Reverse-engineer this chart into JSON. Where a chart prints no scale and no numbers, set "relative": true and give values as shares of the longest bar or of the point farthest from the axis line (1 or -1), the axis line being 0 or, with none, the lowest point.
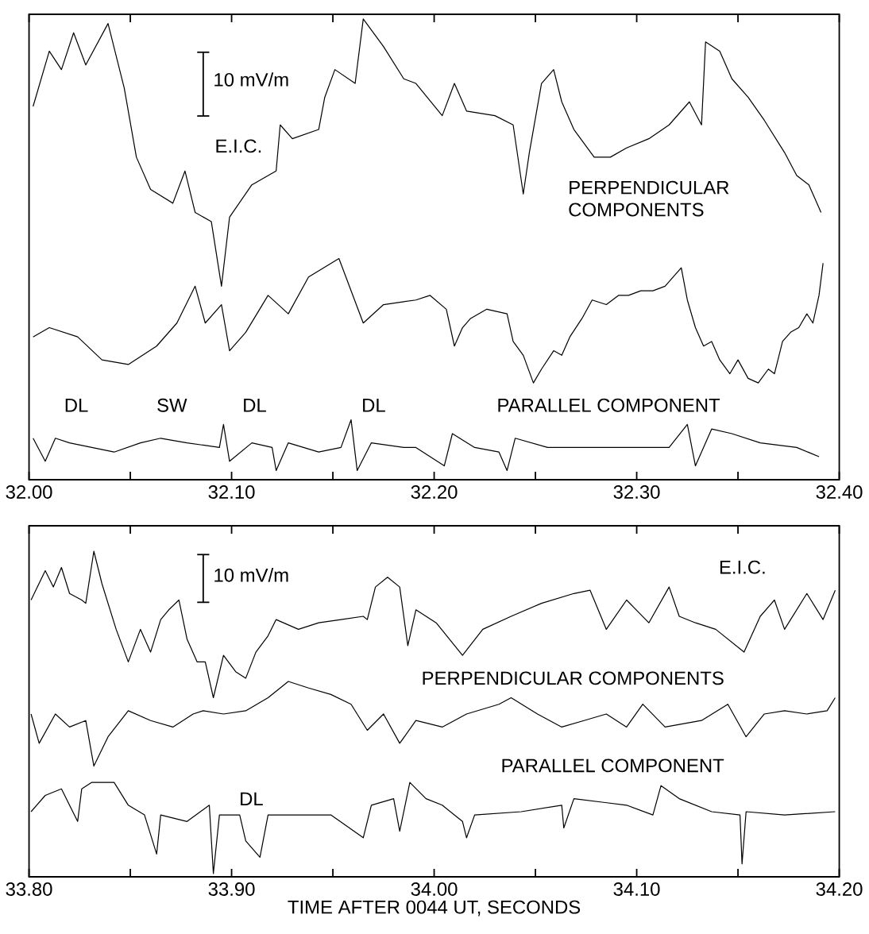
{
  "chart_data": [
    {
      "type": "line",
      "relative": true,
      "xlim": [
        32.0,
        32.4
      ],
      "xticks": [
        {
          "value": 32.0,
          "label": "32.00"
        },
        {
          "value": 32.05,
          "label": null
        },
        {
          "value": 32.1,
          "label": "32.10"
        },
        {
          "value": 32.15,
          "label": null
        },
        {
          "value": 32.2,
          "label": "32.20"
        },
        {
          "value": 32.25,
          "label": null
        },
        {
          "value": 32.3,
          "label": "32.30"
        },
        {
          "value": 32.35,
          "label": null
        },
        {
          "value": 32.4,
          "label": "32.40"
        }
      ],
      "series": [
        {
          "color": "#000000",
          "x": [
            32.002,
            32.01,
            32.016,
            32.022,
            32.028,
            32.039,
            32.047,
            32.053,
            32.06,
            32.071,
            32.077,
            32.082,
            32.09,
            32.095,
            32.099,
            32.11,
            32.122,
            32.124,
            32.13,
            32.143,
            32.146,
            32.151,
            32.161,
            32.165,
            32.175,
            32.185,
            32.191,
            32.204,
            32.21,
            32.216,
            32.23,
            32.239,
            32.244,
            32.247,
            32.253,
            32.259,
            32.263,
            32.269,
            32.279,
            32.287,
            32.295,
            32.306,
            32.316,
            32.326,
            32.332,
            32.334,
            32.341,
            32.347,
            32.355,
            32.363,
            32.373,
            32.379,
            32.385,
            32.391
          ],
          "values": [
            0.81,
            0.93,
            0.89,
            0.97,
            0.9,
            0.99,
            0.85,
            0.7,
            0.63,
            0.6,
            0.67,
            0.58,
            0.56,
            0.42,
            0.57,
            0.64,
            0.67,
            0.77,
            0.74,
            0.76,
            0.83,
            0.89,
            0.86,
            1.0,
            0.94,
            0.87,
            0.86,
            0.79,
            0.86,
            0.8,
            0.79,
            0.77,
            0.62,
            0.71,
            0.86,
            0.89,
            0.82,
            0.76,
            0.7,
            0.7,
            0.72,
            0.74,
            0.77,
            0.82,
            0.77,
            0.95,
            0.93,
            0.87,
            0.83,
            0.78,
            0.71,
            0.66,
            0.64,
            0.58
          ]
        },
        {
          "color": "#000000",
          "x": [
            32.002,
            32.01,
            32.024,
            32.036,
            32.049,
            32.063,
            32.073,
            32.082,
            32.087,
            32.095,
            32.099,
            32.107,
            32.118,
            32.128,
            32.138,
            32.153,
            32.165,
            32.175,
            32.191,
            32.198,
            32.206,
            32.21,
            32.214,
            32.218,
            32.226,
            32.236,
            32.239,
            32.244,
            32.249,
            32.253,
            32.259,
            32.263,
            32.267,
            32.273,
            32.278,
            32.285,
            32.291,
            32.296,
            32.302,
            32.308,
            32.314,
            32.322,
            32.325,
            32.329,
            32.333,
            32.337,
            32.341,
            32.346,
            32.35,
            32.355,
            32.36,
            32.365,
            32.368,
            32.372,
            32.376,
            32.38,
            32.384,
            32.387,
            32.39,
            32.392
          ],
          "values": [
            0.31,
            0.33,
            0.31,
            0.26,
            0.25,
            0.29,
            0.34,
            0.42,
            0.34,
            0.38,
            0.28,
            0.32,
            0.4,
            0.36,
            0.44,
            0.48,
            0.34,
            0.38,
            0.39,
            0.4,
            0.37,
            0.29,
            0.33,
            0.35,
            0.37,
            0.36,
            0.3,
            0.27,
            0.21,
            0.24,
            0.28,
            0.27,
            0.31,
            0.35,
            0.39,
            0.38,
            0.4,
            0.4,
            0.41,
            0.41,
            0.42,
            0.46,
            0.39,
            0.33,
            0.29,
            0.3,
            0.26,
            0.23,
            0.26,
            0.22,
            0.21,
            0.24,
            0.23,
            0.3,
            0.32,
            0.33,
            0.36,
            0.34,
            0.4,
            0.47
          ]
        },
        {
          "color": "#000000",
          "x": [
            32.002,
            32.008,
            32.013,
            32.02,
            32.031,
            32.042,
            32.055,
            32.065,
            32.078,
            32.094,
            32.096,
            32.099,
            32.11,
            32.12,
            32.122,
            32.128,
            32.143,
            32.154,
            32.159,
            32.162,
            32.169,
            32.185,
            32.191,
            32.205,
            32.209,
            32.22,
            32.232,
            32.236,
            32.24,
            32.256,
            32.282,
            32.3,
            32.316,
            32.325,
            32.329,
            32.337,
            32.347,
            32.361,
            32.379,
            32.39
          ],
          "values": [
            0.09,
            0.04,
            0.09,
            0.08,
            0.07,
            0.06,
            0.08,
            0.09,
            0.08,
            0.07,
            0.12,
            0.04,
            0.08,
            0.07,
            0.02,
            0.08,
            0.06,
            0.07,
            0.13,
            0.02,
            0.08,
            0.07,
            0.07,
            0.03,
            0.1,
            0.07,
            0.06,
            0.02,
            0.09,
            0.07,
            0.07,
            0.07,
            0.07,
            0.12,
            0.03,
            0.11,
            0.1,
            0.08,
            0.07,
            0.05
          ]
        }
      ],
      "annotations": [
        "10 mV/m",
        "E.I.C.",
        "PERPENDICULAR COMPONENTS",
        "PARALLEL COMPONENT",
        "DL",
        "SW",
        "DL",
        "DL"
      ]
    },
    {
      "type": "line",
      "relative": true,
      "xlim": [
        33.8,
        34.2
      ],
      "xlabel": "TIME AFTER 0044 UT, SECONDS",
      "xticks": [
        {
          "value": 33.8,
          "label": "33.80"
        },
        {
          "value": 33.85,
          "label": null
        },
        {
          "value": 33.9,
          "label": "33.90"
        },
        {
          "value": 33.95,
          "label": null
        },
        {
          "value": 34.0,
          "label": "34.00"
        },
        {
          "value": 34.05,
          "label": null
        },
        {
          "value": 34.1,
          "label": "34.10"
        },
        {
          "value": 34.15,
          "label": null
        },
        {
          "value": 34.2,
          "label": "34.20"
        }
      ],
      "series": [
        {
          "color": "#000000",
          "x": [
            33.801,
            33.808,
            33.812,
            33.816,
            33.82,
            33.826,
            33.828,
            33.832,
            33.836,
            33.843,
            33.849,
            33.855,
            33.86,
            33.865,
            33.869,
            33.874,
            33.878,
            33.883,
            33.887,
            33.891,
            33.896,
            33.902,
            33.907,
            33.912,
            33.918,
            33.922,
            33.933,
            33.943,
            33.954,
            33.965,
            33.967,
            33.971,
            33.977,
            33.983,
            33.987,
            33.991,
            34.001,
            34.014,
            34.024,
            34.038,
            34.053,
            34.069,
            34.077,
            34.085,
            34.095,
            34.106,
            34.116,
            34.121,
            34.129,
            34.139,
            34.153,
            34.161,
            34.168,
            34.173,
            34.184,
            34.192,
            34.198
          ],
          "values": [
            0.85,
            0.94,
            0.89,
            0.95,
            0.87,
            0.85,
            0.84,
            1.0,
            0.9,
            0.76,
            0.66,
            0.76,
            0.69,
            0.79,
            0.82,
            0.85,
            0.73,
            0.66,
            0.66,
            0.55,
            0.68,
            0.63,
            0.61,
            0.69,
            0.74,
            0.79,
            0.76,
            0.78,
            0.79,
            0.8,
            0.79,
            0.89,
            0.92,
            0.89,
            0.71,
            0.82,
            0.78,
            0.68,
            0.76,
            0.8,
            0.84,
            0.87,
            0.88,
            0.76,
            0.85,
            0.78,
            0.89,
            0.8,
            0.78,
            0.76,
            0.69,
            0.8,
            0.85,
            0.76,
            0.87,
            0.79,
            0.88
          ]
        },
        {
          "color": "#000000",
          "x": [
            33.801,
            33.805,
            33.813,
            33.82,
            33.828,
            33.832,
            33.839,
            33.849,
            33.86,
            33.871,
            33.881,
            33.886,
            33.896,
            33.907,
            33.918,
            33.928,
            33.938,
            33.949,
            33.959,
            33.967,
            33.975,
            33.983,
            33.991,
            34.004,
            34.016,
            34.032,
            34.038,
            34.051,
            34.063,
            34.074,
            34.085,
            34.095,
            34.103,
            34.114,
            34.132,
            34.145,
            34.154,
            34.163,
            34.173,
            34.184,
            34.194,
            34.198
          ],
          "values": [
            0.5,
            0.41,
            0.5,
            0.46,
            0.48,
            0.34,
            0.43,
            0.51,
            0.48,
            0.46,
            0.5,
            0.51,
            0.5,
            0.51,
            0.55,
            0.6,
            0.58,
            0.56,
            0.53,
            0.45,
            0.5,
            0.41,
            0.48,
            0.46,
            0.5,
            0.53,
            0.55,
            0.5,
            0.46,
            0.48,
            0.5,
            0.46,
            0.53,
            0.46,
            0.48,
            0.53,
            0.43,
            0.5,
            0.51,
            0.5,
            0.51,
            0.55
          ]
        },
        {
          "color": "#000000",
          "x": [
            33.801,
            33.808,
            33.816,
            33.824,
            33.826,
            33.831,
            33.842,
            33.849,
            33.857,
            33.863,
            33.865,
            33.878,
            33.889,
            33.891,
            33.894,
            33.904,
            33.907,
            33.914,
            33.918,
            33.933,
            33.949,
            33.965,
            33.969,
            33.98,
            33.983,
            33.988,
            33.996,
            34.004,
            34.014,
            34.016,
            34.02,
            34.043,
            34.063,
            34.064,
            34.069,
            34.095,
            34.108,
            34.112,
            34.121,
            34.137,
            34.151,
            34.152,
            34.154,
            34.173,
            34.198
          ],
          "values": [
            0.2,
            0.25,
            0.27,
            0.17,
            0.27,
            0.29,
            0.29,
            0.22,
            0.19,
            0.07,
            0.19,
            0.17,
            0.22,
            0.01,
            0.19,
            0.19,
            0.11,
            0.06,
            0.19,
            0.19,
            0.19,
            0.12,
            0.22,
            0.24,
            0.14,
            0.29,
            0.24,
            0.22,
            0.17,
            0.12,
            0.19,
            0.2,
            0.22,
            0.15,
            0.24,
            0.22,
            0.19,
            0.28,
            0.24,
            0.2,
            0.19,
            0.04,
            0.2,
            0.19,
            0.2
          ]
        }
      ],
      "annotations": [
        "10 mV/m",
        "E.I.C.",
        "PERPENDICULAR COMPONENTS",
        "PARALLEL COMPONENT",
        "DL"
      ]
    }
  ]
}
